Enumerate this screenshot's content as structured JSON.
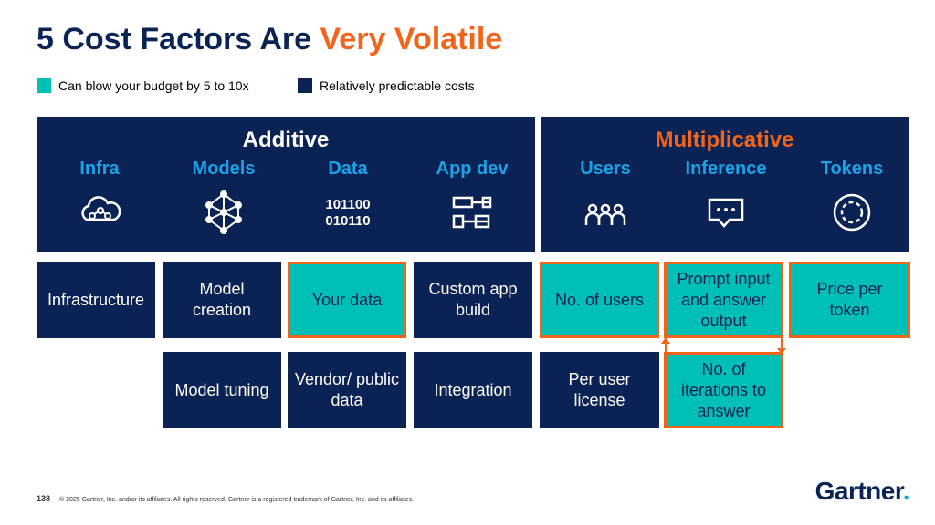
{
  "title": {
    "part1": "5 Cost Factors Are ",
    "part2": "Very Volatile"
  },
  "legend": [
    {
      "label": "Can blow your budget by 5 to 10x",
      "color": "#00c0b5"
    },
    {
      "label": "Relatively predictable costs",
      "color": "#0b2354"
    }
  ],
  "additive": {
    "heading": "Additive",
    "columns": [
      {
        "label": "Infra",
        "icon": "cloud-network-icon"
      },
      {
        "label": "Models",
        "icon": "neural-network-icon"
      },
      {
        "label": "Data",
        "icon": "binary-data-icon"
      },
      {
        "label": "App dev",
        "icon": "app-components-icon"
      }
    ]
  },
  "multiplicative": {
    "heading": "Multiplicative",
    "columns": [
      {
        "label": "Users",
        "icon": "users-group-icon"
      },
      {
        "label": "Inference",
        "icon": "chat-bubble-icon"
      },
      {
        "label": "Tokens",
        "icon": "token-coin-icon"
      }
    ]
  },
  "data_icon_text": {
    "line1": "101100",
    "line2": "010110"
  },
  "boxes": {
    "infrastructure": "Infrastructure",
    "model_creation": "Model creation",
    "your_data": "Your data",
    "custom_app_build": "Custom app build",
    "no_of_users": "No. of users",
    "prompt_io": "Prompt input and answer output",
    "price_per_token": "Price per token",
    "model_tuning": "Model tuning",
    "vendor_public_data": "Vendor/ public data",
    "integration": "Integration",
    "per_user_license": "Per user license",
    "iterations": "No. of iterations to answer"
  },
  "footer": {
    "page": "138",
    "copyright": "© 2025 Gartner, Inc. and/or its affiliates. All rights reserved. Gartner is a registered trademark of Gartner, Inc. and its affiliates."
  },
  "logo": {
    "text": "Gartner",
    "dot": "."
  },
  "colors": {
    "navy": "#0b2354",
    "teal": "#00c0b5",
    "orange": "#f26419",
    "blue": "#1aa3e8"
  }
}
